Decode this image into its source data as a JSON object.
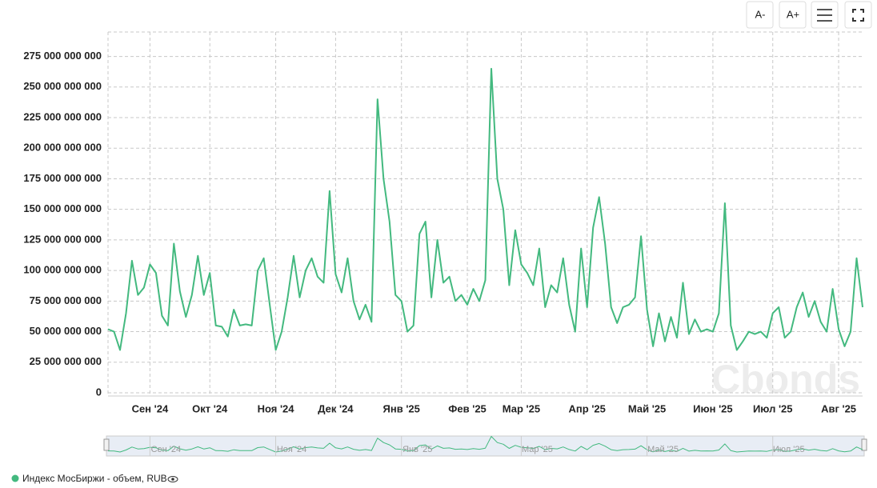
{
  "ui": {
    "buttons": [
      "A-",
      "A+"
    ],
    "watermark": "Cbonds"
  },
  "chart_data": {
    "type": "line",
    "categories": [
      null,
      null,
      null,
      null,
      null,
      null,
      null,
      "Сен '24",
      null,
      null,
      null,
      null,
      null,
      null,
      null,
      null,
      null,
      "Окт '24",
      null,
      null,
      null,
      null,
      null,
      null,
      null,
      null,
      null,
      null,
      "Ноя '24",
      null,
      null,
      null,
      null,
      null,
      null,
      null,
      null,
      null,
      "Дек '24",
      null,
      null,
      null,
      null,
      null,
      null,
      null,
      null,
      null,
      null,
      "Янв '25",
      null,
      null,
      null,
      null,
      null,
      null,
      null,
      null,
      null,
      null,
      "Фев '25",
      null,
      null,
      null,
      null,
      null,
      null,
      null,
      null,
      "Мар '25",
      null,
      null,
      null,
      null,
      null,
      null,
      null,
      null,
      null,
      null,
      "Апр '25",
      null,
      null,
      null,
      null,
      null,
      null,
      null,
      null,
      null,
      "Май '25",
      null,
      null,
      null,
      null,
      null,
      null,
      null,
      null,
      null,
      null,
      "Июн '25",
      null,
      null,
      null,
      null,
      null,
      null,
      null,
      null,
      null,
      "Июл '25",
      null,
      null,
      null,
      null,
      null,
      null,
      null,
      null,
      null,
      null,
      "Авг '25",
      null,
      null,
      null,
      null
    ],
    "series": [
      {
        "name": "Индекс МосБиржи - объем, RUB",
        "color": "#43b97f",
        "values": [
          52000000000,
          50000000000,
          35000000000,
          65000000000,
          108000000000,
          80000000000,
          86000000000,
          105000000000,
          98000000000,
          63000000000,
          55000000000,
          122000000000,
          83000000000,
          62000000000,
          80000000000,
          112000000000,
          80000000000,
          98000000000,
          55000000000,
          54000000000,
          46000000000,
          68000000000,
          55000000000,
          56000000000,
          55000000000,
          100000000000,
          110000000000,
          72000000000,
          35000000000,
          50000000000,
          78000000000,
          112000000000,
          78000000000,
          100000000000,
          110000000000,
          95000000000,
          90000000000,
          165000000000,
          97000000000,
          82000000000,
          110000000000,
          75000000000,
          60000000000,
          72000000000,
          58000000000,
          240000000000,
          175000000000,
          140000000000,
          80000000000,
          75000000000,
          50000000000,
          55000000000,
          130000000000,
          140000000000,
          78000000000,
          125000000000,
          90000000000,
          95000000000,
          75000000000,
          80000000000,
          72000000000,
          85000000000,
          75000000000,
          92000000000,
          265000000000,
          175000000000,
          150000000000,
          88000000000,
          133000000000,
          105000000000,
          98000000000,
          88000000000,
          118000000000,
          70000000000,
          88000000000,
          82000000000,
          110000000000,
          72000000000,
          50000000000,
          118000000000,
          70000000000,
          135000000000,
          160000000000,
          122000000000,
          70000000000,
          57000000000,
          70000000000,
          72000000000,
          78000000000,
          128000000000,
          68000000000,
          38000000000,
          65000000000,
          42000000000,
          62000000000,
          45000000000,
          90000000000,
          48000000000,
          60000000000,
          50000000000,
          52000000000,
          50000000000,
          65000000000,
          155000000000,
          55000000000,
          35000000000,
          42000000000,
          50000000000,
          48000000000,
          50000000000,
          45000000000,
          65000000000,
          70000000000,
          45000000000,
          50000000000,
          70000000000,
          82000000000,
          62000000000,
          75000000000,
          58000000000,
          50000000000,
          85000000000,
          52000000000,
          38000000000,
          50000000000,
          110000000000,
          70000000000
        ]
      }
    ],
    "ylim": [
      0,
      295000000000
    ],
    "yticks": [
      0,
      {
        "value": 25000000000,
        "label": "25 000 000 000"
      },
      {
        "value": 50000000000,
        "label": "50 000 000 000"
      },
      {
        "value": 75000000000,
        "label": "75 000 000 000"
      },
      {
        "value": 100000000000,
        "label": "100 000 000 000"
      },
      {
        "value": 125000000000,
        "label": "125 000 000 000"
      },
      {
        "value": 150000000000,
        "label": "150 000 000 000"
      },
      {
        "value": 175000000000,
        "label": "175 000 000 000"
      },
      {
        "value": 200000000000,
        "label": "200 000 000 000"
      },
      {
        "value": 225000000000,
        "label": "225 000 000 000"
      },
      {
        "value": 250000000000,
        "label": "250 000 000 000"
      },
      {
        "value": 275000000000,
        "label": "275 000 000 000"
      }
    ],
    "grid": true
  }
}
